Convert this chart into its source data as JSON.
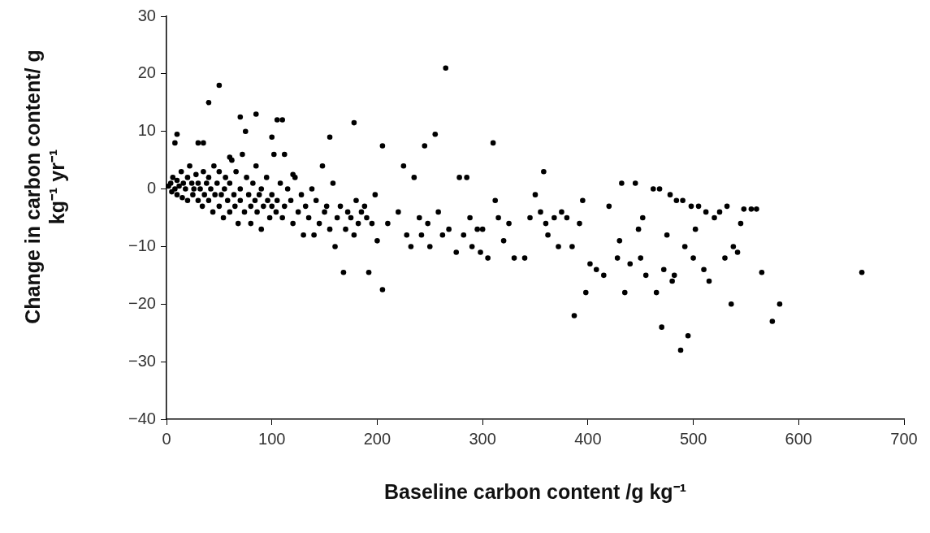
{
  "chart_data": {
    "type": "scatter",
    "xlabel": "Baseline carbon content /g kg⁻¹",
    "ylabel": "Change in carbon content/ g kg⁻¹ yr⁻¹",
    "xlim": [
      0,
      700
    ],
    "xticks": [
      0,
      100,
      200,
      300,
      400,
      500,
      600,
      700
    ],
    "ylim": [
      -40,
      30
    ],
    "yticks": [
      -40,
      -30,
      -20,
      -10,
      0,
      10,
      20,
      30
    ],
    "grid": false,
    "legend": false,
    "marker": "circle",
    "series": [
      {
        "color": "#000000",
        "x": [
          2,
          4,
          5,
          6,
          8,
          10,
          10,
          12,
          14,
          15,
          16,
          18,
          20,
          20,
          22,
          24,
          25,
          26,
          28,
          30,
          30,
          32,
          34,
          35,
          36,
          38,
          40,
          40,
          42,
          44,
          45,
          46,
          48,
          50,
          50,
          52,
          54,
          55,
          56,
          58,
          60,
          60,
          62,
          64,
          65,
          66,
          68,
          70,
          70,
          72,
          74,
          76,
          78,
          80,
          80,
          82,
          84,
          85,
          86,
          88,
          90,
          90,
          92,
          95,
          96,
          98,
          100,
          100,
          102,
          104,
          105,
          108,
          110,
          112,
          115,
          118,
          120,
          122,
          125,
          128,
          130,
          132,
          135,
          138,
          140,
          142,
          145,
          148,
          150,
          152,
          155,
          158,
          160,
          162,
          165,
          168,
          170,
          172,
          175,
          178,
          180,
          182,
          185,
          188,
          190,
          192,
          195,
          198,
          200,
          205,
          205,
          210,
          10,
          8,
          30,
          35,
          40,
          50,
          70,
          85,
          75,
          105,
          110,
          112,
          100,
          155,
          178,
          60,
          120,
          220,
          225,
          228,
          232,
          235,
          240,
          242,
          245,
          248,
          250,
          255,
          258,
          262,
          265,
          268,
          275,
          278,
          282,
          285,
          288,
          290,
          295,
          298,
          300,
          305,
          310,
          312,
          315,
          320,
          325,
          330,
          340,
          345,
          350,
          355,
          358,
          360,
          362,
          368,
          372,
          375,
          380,
          385,
          387,
          392,
          395,
          398,
          402,
          408,
          415,
          420,
          428,
          430,
          432,
          435,
          440,
          445,
          448,
          450,
          452,
          455,
          462,
          465,
          468,
          470,
          472,
          475,
          478,
          480,
          482,
          484,
          488,
          490,
          492,
          495,
          498,
          500,
          502,
          505,
          510,
          512,
          515,
          520,
          525,
          530,
          532,
          536,
          538,
          542,
          545,
          548,
          555,
          560,
          565,
          575,
          582,
          660
        ],
        "values": [
          0.5,
          1,
          -0.5,
          2,
          0,
          1.5,
          -1,
          0.5,
          3,
          -1.5,
          1,
          0,
          2,
          -2,
          4,
          1,
          -1,
          0,
          2.5,
          -2,
          1,
          0,
          -3,
          3,
          -1,
          1,
          -2,
          2,
          0,
          -4,
          4,
          -1,
          1,
          -3,
          3,
          -1,
          -5,
          0,
          2,
          -2,
          -4,
          1,
          5,
          -1,
          -3,
          3,
          -6,
          0,
          -2,
          6,
          -4,
          2,
          -1,
          -3,
          -6,
          1,
          -2,
          4,
          -4,
          -1,
          -7,
          0,
          -3,
          2,
          -2,
          -5,
          -1,
          -3,
          6,
          -4,
          -2,
          1,
          -5,
          -3,
          0,
          -2,
          -6,
          2,
          -4,
          -1,
          -8,
          -3,
          -5,
          0,
          -8,
          -2,
          -6,
          4,
          -4,
          -3,
          -7,
          1,
          -10,
          -5,
          -3,
          -14.5,
          -7,
          -4,
          -5,
          -8,
          -2,
          -6,
          -4,
          -3,
          -5,
          -14.5,
          -6,
          -1,
          -9,
          -17.5,
          7.5,
          -6,
          9.5,
          8,
          8,
          8,
          15,
          18,
          12.5,
          13,
          10,
          12,
          12,
          6,
          9,
          9,
          11.5,
          5.5,
          2.5,
          -4,
          4,
          -8,
          -10,
          2,
          -5,
          -8,
          7.5,
          -6,
          -10,
          9.5,
          -4,
          -8,
          21,
          -7,
          -11,
          2,
          -8,
          2,
          -5,
          -10,
          -7,
          -11,
          -7,
          -12,
          8,
          -2,
          -5,
          -9,
          -6,
          -12,
          -12,
          -5,
          -1,
          -4,
          3,
          -6,
          -8,
          -5,
          -10,
          -4,
          -5,
          -10,
          -22,
          -6,
          -2,
          -18,
          -13,
          -14,
          -15,
          -3,
          -12,
          -9,
          1,
          -18,
          -13,
          1,
          -7,
          -12,
          -5,
          -15,
          0,
          -18,
          0,
          -24,
          -14,
          -8,
          -1,
          -16,
          -15,
          -2,
          -28,
          -2,
          -10,
          -25.5,
          -3,
          -12,
          -7,
          -3,
          -14,
          -4,
          -16,
          -5,
          -4,
          -12,
          -3,
          -20,
          -10,
          -11,
          -6,
          -3.5,
          -3.5,
          -3.5,
          -14.5,
          -23,
          -20,
          -14.5
        ]
      }
    ]
  }
}
